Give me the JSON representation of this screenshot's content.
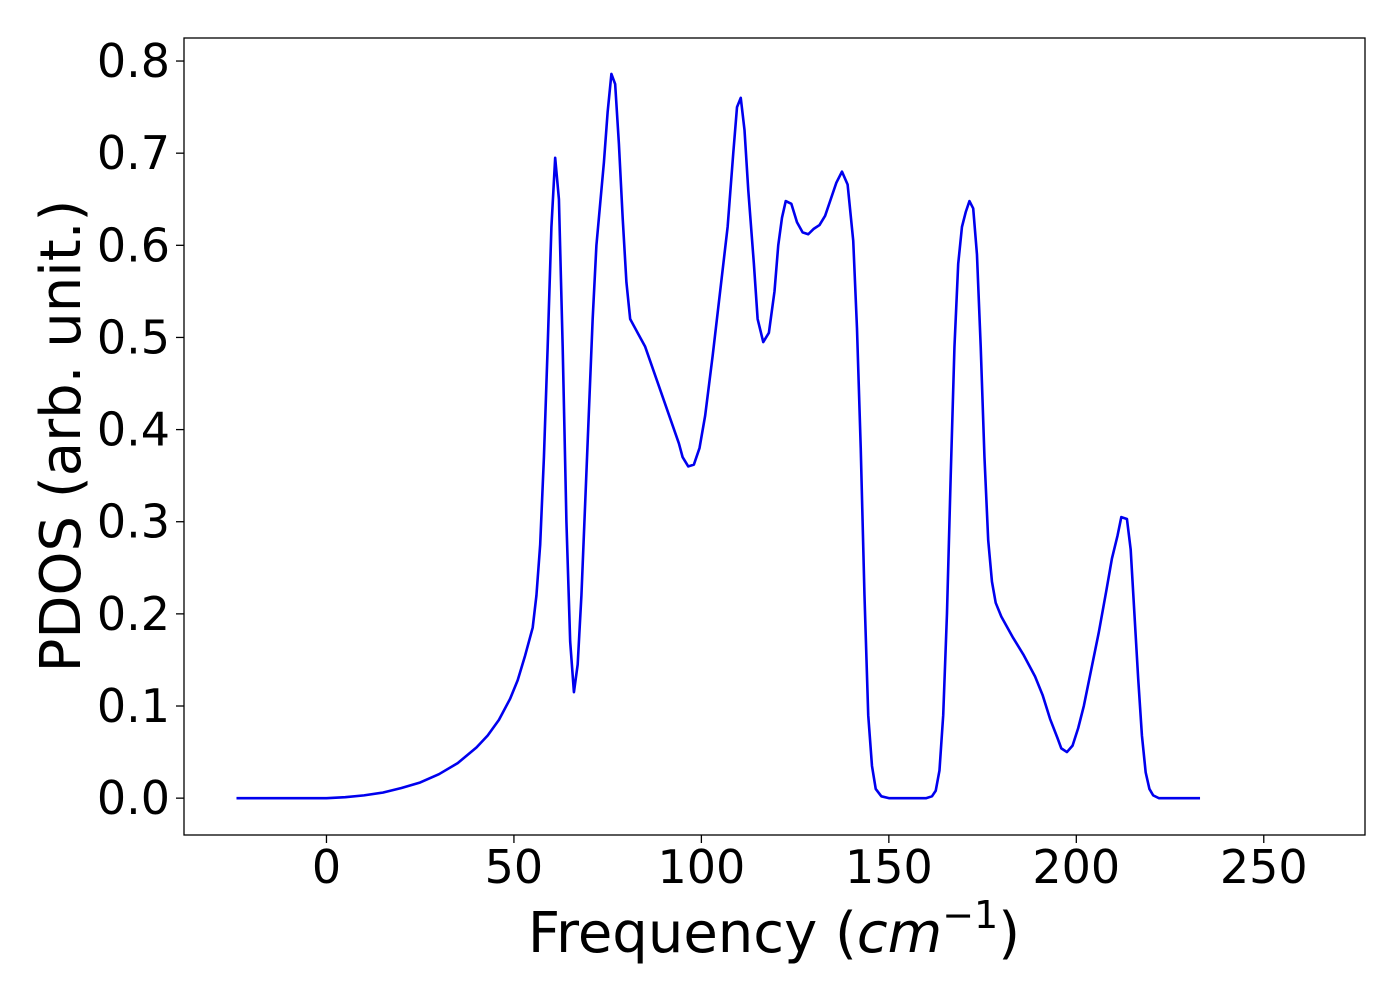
{
  "chart_data": {
    "type": "line",
    "title": "",
    "xlabel": "Frequency (",
    "xlabel_math": "cm",
    "xlabel_sup": "−1",
    "xlabel_close": ")",
    "ylabel": "PDOS (arb. unit.)",
    "xlim": [
      -38,
      277
    ],
    "ylim": [
      -0.04,
      0.825
    ],
    "x_ticks": [
      0,
      50,
      100,
      150,
      200,
      250
    ],
    "x_tick_labels": [
      "0",
      "50",
      "100",
      "150",
      "200",
      "250"
    ],
    "y_ticks": [
      0.0,
      0.1,
      0.2,
      0.3,
      0.4,
      0.5,
      0.6,
      0.7,
      0.8
    ],
    "y_tick_labels": [
      "0.0",
      "0.1",
      "0.2",
      "0.3",
      "0.4",
      "0.5",
      "0.6",
      "0.7",
      "0.8"
    ],
    "grid": false,
    "legend": "none",
    "series": [
      {
        "color": "#0000ee",
        "points": [
          [
            -24,
            0.0
          ],
          [
            -10,
            0.0
          ],
          [
            0,
            0.0
          ],
          [
            5,
            0.001
          ],
          [
            10,
            0.003
          ],
          [
            15,
            0.006
          ],
          [
            20,
            0.011
          ],
          [
            25,
            0.017
          ],
          [
            30,
            0.026
          ],
          [
            35,
            0.038
          ],
          [
            40,
            0.055
          ],
          [
            43,
            0.068
          ],
          [
            46,
            0.085
          ],
          [
            49,
            0.108
          ],
          [
            51,
            0.128
          ],
          [
            53,
            0.155
          ],
          [
            55,
            0.185
          ],
          [
            56,
            0.22
          ],
          [
            57,
            0.275
          ],
          [
            58,
            0.37
          ],
          [
            59,
            0.49
          ],
          [
            60,
            0.62
          ],
          [
            61,
            0.695
          ],
          [
            62,
            0.65
          ],
          [
            63,
            0.49
          ],
          [
            64,
            0.3
          ],
          [
            65,
            0.17
          ],
          [
            66,
            0.115
          ],
          [
            67,
            0.145
          ],
          [
            68,
            0.22
          ],
          [
            69,
            0.32
          ],
          [
            70,
            0.42
          ],
          [
            71,
            0.52
          ],
          [
            72,
            0.6
          ],
          [
            74,
            0.69
          ],
          [
            75,
            0.745
          ],
          [
            76,
            0.786
          ],
          [
            77,
            0.775
          ],
          [
            78,
            0.71
          ],
          [
            79,
            0.63
          ],
          [
            80,
            0.56
          ],
          [
            81,
            0.52
          ],
          [
            83,
            0.505
          ],
          [
            85,
            0.49
          ],
          [
            88,
            0.455
          ],
          [
            91,
            0.42
          ],
          [
            94,
            0.385
          ],
          [
            95,
            0.37
          ],
          [
            96.5,
            0.36
          ],
          [
            98,
            0.362
          ],
          [
            99.5,
            0.38
          ],
          [
            101,
            0.415
          ],
          [
            103,
            0.48
          ],
          [
            105,
            0.55
          ],
          [
            107,
            0.62
          ],
          [
            108.5,
            0.7
          ],
          [
            109.5,
            0.75
          ],
          [
            110.5,
            0.76
          ],
          [
            111.5,
            0.725
          ],
          [
            112.5,
            0.66
          ],
          [
            114,
            0.58
          ],
          [
            115,
            0.52
          ],
          [
            116.5,
            0.495
          ],
          [
            118,
            0.505
          ],
          [
            119.5,
            0.55
          ],
          [
            120.5,
            0.6
          ],
          [
            121.5,
            0.63
          ],
          [
            122.5,
            0.648
          ],
          [
            124,
            0.645
          ],
          [
            125.5,
            0.625
          ],
          [
            127,
            0.614
          ],
          [
            128.5,
            0.612
          ],
          [
            130,
            0.618
          ],
          [
            131.5,
            0.622
          ],
          [
            133,
            0.632
          ],
          [
            134.5,
            0.65
          ],
          [
            136,
            0.668
          ],
          [
            137.5,
            0.68
          ],
          [
            139,
            0.666
          ],
          [
            140.5,
            0.605
          ],
          [
            141.5,
            0.51
          ],
          [
            142.5,
            0.38
          ],
          [
            143.5,
            0.22
          ],
          [
            144.5,
            0.09
          ],
          [
            145.5,
            0.035
          ],
          [
            146.5,
            0.01
          ],
          [
            148,
            0.002
          ],
          [
            150,
            0.0
          ],
          [
            158,
            0.0
          ],
          [
            160,
            0.0
          ],
          [
            161.5,
            0.002
          ],
          [
            162.5,
            0.008
          ],
          [
            163.5,
            0.03
          ],
          [
            164.5,
            0.09
          ],
          [
            165.5,
            0.2
          ],
          [
            166.5,
            0.35
          ],
          [
            167.5,
            0.49
          ],
          [
            168.5,
            0.58
          ],
          [
            169.5,
            0.62
          ],
          [
            170.5,
            0.636
          ],
          [
            171.5,
            0.648
          ],
          [
            172.5,
            0.64
          ],
          [
            173.5,
            0.59
          ],
          [
            174.5,
            0.49
          ],
          [
            175.5,
            0.37
          ],
          [
            176.5,
            0.28
          ],
          [
            177.5,
            0.235
          ],
          [
            178.5,
            0.212
          ],
          [
            180,
            0.197
          ],
          [
            183,
            0.175
          ],
          [
            186,
            0.155
          ],
          [
            189,
            0.132
          ],
          [
            191,
            0.112
          ],
          [
            193,
            0.086
          ],
          [
            195,
            0.065
          ],
          [
            196,
            0.054
          ],
          [
            197.5,
            0.05
          ],
          [
            199,
            0.057
          ],
          [
            200.5,
            0.076
          ],
          [
            202,
            0.1
          ],
          [
            204,
            0.14
          ],
          [
            206,
            0.18
          ],
          [
            208,
            0.225
          ],
          [
            209.5,
            0.26
          ],
          [
            211,
            0.285
          ],
          [
            212,
            0.305
          ],
          [
            213.5,
            0.303
          ],
          [
            214.5,
            0.27
          ],
          [
            215.5,
            0.2
          ],
          [
            216.5,
            0.13
          ],
          [
            217.5,
            0.068
          ],
          [
            218.5,
            0.028
          ],
          [
            219.5,
            0.01
          ],
          [
            220.5,
            0.003
          ],
          [
            222,
            0.0
          ],
          [
            233,
            0.0
          ]
        ]
      }
    ]
  }
}
